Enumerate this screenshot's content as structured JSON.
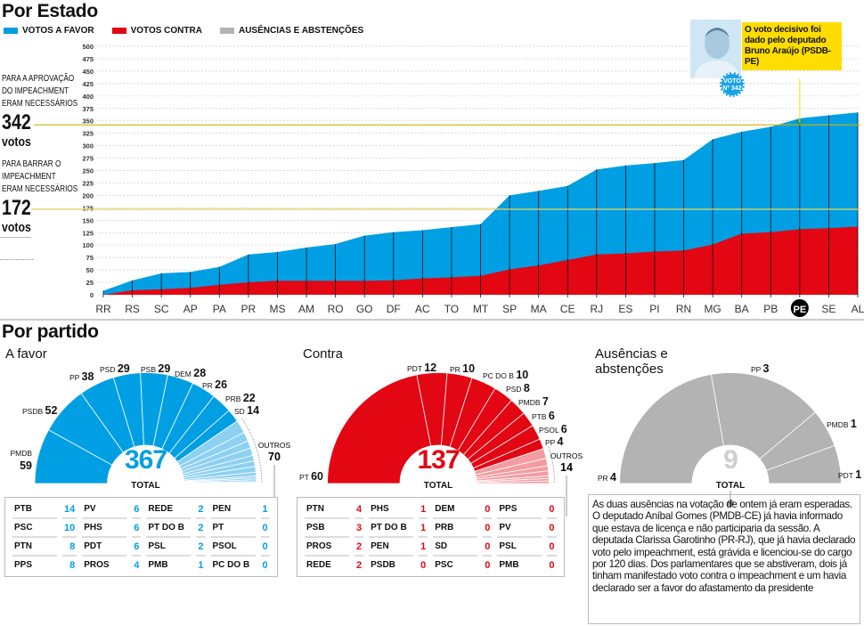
{
  "header": {
    "title": "Por Estado"
  },
  "legend": [
    {
      "label": "VOTOS A FAVOR",
      "color": "#009fe3"
    },
    {
      "label": "VOTOS CONTRA",
      "color": "#e30613"
    },
    {
      "label": "AUSÊNCIAS E ABSTENÇÕES",
      "color": "#b3b3b3"
    }
  ],
  "annotations": {
    "approve": {
      "lines": [
        "PARA A APROVAÇÃO",
        "DO IMPEACHMENT",
        "ERAM NECESSÁRIOS"
      ],
      "number": "342",
      "unit": "votos"
    },
    "block": {
      "lines": [
        "PARA BARRAR O",
        "IMPEACHMENT",
        "ERAM NECESSÁRIOS"
      ],
      "number": "172",
      "unit": "votos"
    }
  },
  "callout": {
    "text": "O voto decisivo foi dado pelo deputado Bruno Araújo (PSDB-PE)",
    "badge_line1": "VOTO",
    "badge_line2": "Nº 342"
  },
  "chart_data": [
    {
      "type": "area",
      "title": "Por Estado",
      "categories": [
        "RR",
        "RS",
        "SC",
        "AP",
        "PA",
        "PR",
        "MS",
        "AM",
        "RO",
        "GO",
        "DF",
        "AC",
        "TO",
        "MT",
        "SP",
        "MA",
        "CE",
        "RJ",
        "ES",
        "PI",
        "RN",
        "MG",
        "BA",
        "PB",
        "PE",
        "SE",
        "AL"
      ],
      "series": [
        {
          "name": "VOTOS A FAVOR",
          "color": "#009fe3",
          "values": [
            8,
            29,
            43,
            46,
            56,
            81,
            86,
            95,
            102,
            119,
            126,
            130,
            136,
            142,
            200,
            209,
            219,
            252,
            260,
            265,
            271,
            313,
            328,
            338,
            355,
            361,
            367
          ]
        },
        {
          "name": "VOTOS CONTRA",
          "color": "#e30613",
          "values": [
            0,
            9,
            11,
            14,
            20,
            25,
            28,
            28,
            28,
            28,
            29,
            33,
            35,
            38,
            51,
            59,
            70,
            81,
            83,
            87,
            89,
            101,
            123,
            126,
            132,
            134,
            137
          ]
        }
      ],
      "ylim": [
        0,
        500
      ],
      "yticks": [
        0,
        25,
        50,
        75,
        100,
        125,
        150,
        175,
        200,
        225,
        250,
        275,
        300,
        325,
        350,
        375,
        400,
        425,
        450,
        475,
        500
      ],
      "thresholds": [
        342,
        172
      ],
      "highlight": "PE",
      "grid": true
    },
    {
      "type": "pie",
      "title": "A favor",
      "total": "367",
      "total_label": "TOTAL",
      "color": "#009fe3",
      "others_color": "#8dd0f2",
      "parties": [
        {
          "name": "PMDB",
          "value": 59
        },
        {
          "name": "PSDB",
          "value": 52
        },
        {
          "name": "PP",
          "value": 38
        },
        {
          "name": "PSD",
          "value": 29
        },
        {
          "name": "PSB",
          "value": 29
        },
        {
          "name": "DEM",
          "value": 28
        },
        {
          "name": "PR",
          "value": 26
        },
        {
          "name": "PRB",
          "value": 22
        },
        {
          "name": "SD",
          "value": 14
        }
      ],
      "others": {
        "label": "OUTROS",
        "value": 70
      },
      "table": [
        [
          {
            "name": "PTB",
            "value": 14
          },
          {
            "name": "PSC",
            "value": 10
          },
          {
            "name": "PTN",
            "value": 8
          },
          {
            "name": "PPS",
            "value": 8
          }
        ],
        [
          {
            "name": "PV",
            "value": 6
          },
          {
            "name": "PHS",
            "value": 6
          },
          {
            "name": "PDT",
            "value": 6
          },
          {
            "name": "PROS",
            "value": 4
          }
        ],
        [
          {
            "name": "REDE",
            "value": 2
          },
          {
            "name": "PT DO B",
            "value": 2
          },
          {
            "name": "PSL",
            "value": 2
          },
          {
            "name": "PMB",
            "value": 1
          }
        ],
        [
          {
            "name": "PEN",
            "value": 1
          },
          {
            "name": "PT",
            "value": 0
          },
          {
            "name": "PSOL",
            "value": 0
          },
          {
            "name": "PC DO B",
            "value": 0
          }
        ]
      ]
    },
    {
      "type": "pie",
      "title": "Contra",
      "total": "137",
      "total_label": "TOTAL",
      "color": "#e30613",
      "others_color": "#f39ca2",
      "parties": [
        {
          "name": "PT",
          "value": 60
        },
        {
          "name": "PDT",
          "value": 12
        },
        {
          "name": "PR",
          "value": 10
        },
        {
          "name": "PC DO B",
          "value": 10
        },
        {
          "name": "PSD",
          "value": 8
        },
        {
          "name": "PMDB",
          "value": 7
        },
        {
          "name": "PTB",
          "value": 6
        },
        {
          "name": "PSOL",
          "value": 6
        },
        {
          "name": "PP",
          "value": 4
        }
      ],
      "others": {
        "label": "OUTROS",
        "value": 14
      },
      "table": [
        [
          {
            "name": "PTN",
            "value": 4
          },
          {
            "name": "PSB",
            "value": 3
          },
          {
            "name": "PROS",
            "value": 2
          },
          {
            "name": "REDE",
            "value": 2
          }
        ],
        [
          {
            "name": "PHS",
            "value": 1
          },
          {
            "name": "PT DO B",
            "value": 1
          },
          {
            "name": "PEN",
            "value": 1
          },
          {
            "name": "PSDB",
            "value": 0
          }
        ],
        [
          {
            "name": "DEM",
            "value": 0
          },
          {
            "name": "PRB",
            "value": 0
          },
          {
            "name": "SD",
            "value": 0
          },
          {
            "name": "PSC",
            "value": 0
          }
        ],
        [
          {
            "name": "PPS",
            "value": 0
          },
          {
            "name": "PV",
            "value": 0
          },
          {
            "name": "PSL",
            "value": 0
          },
          {
            "name": "PMB",
            "value": 0
          }
        ]
      ]
    },
    {
      "type": "pie",
      "title": "Ausências e abstenções",
      "total": "9",
      "total_label": "TOTAL",
      "color": "#b3b3b3",
      "parties": [
        {
          "name": "PR",
          "value": 4
        },
        {
          "name": "PP",
          "value": 3
        },
        {
          "name": "PMDB",
          "value": 1
        },
        {
          "name": "PDT",
          "value": 1
        }
      ]
    }
  ],
  "partido": {
    "title": "Por partido",
    "favor_title": "A favor",
    "contra_title": "Contra",
    "ausencias_title_1": "Ausências e",
    "ausencias_title_2": "abstenções",
    "note": "As duas ausências na votação de ontem já eram esperadas. O deputado Aníbal Gomes (PMDB-CE) já havia informado que estava de licença e não participaria da sessão. A deputada Clarissa Garotinho (PR-RJ), que já havia declarado voto pelo impeachment, está grávida e licenciou-se do cargo por 120 dias. Dos parlamentares que se abstiveram, dois já tinham manifestado voto contra o impeachment e um havia declarado ser a favor do afastamento da presidente"
  }
}
